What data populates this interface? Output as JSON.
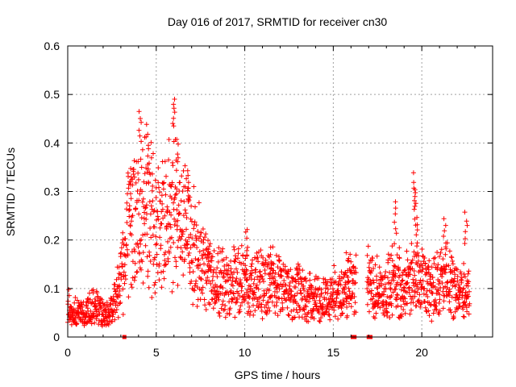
{
  "chart_data": {
    "type": "scatter",
    "title": "Day 016 of 2017, SRMTID for receiver cn30",
    "xlabel": "GPS time / hours",
    "ylabel": "SRMTID / TECUs",
    "xlim": [
      0,
      24
    ],
    "ylim": [
      0,
      0.6
    ],
    "xticks": [
      0,
      5,
      10,
      15,
      20
    ],
    "yticks": [
      0,
      0.1,
      0.2,
      0.3,
      0.4,
      0.5,
      0.6
    ],
    "xtick_labels": [
      "0",
      "5",
      "10",
      "15",
      "20"
    ],
    "ytick_labels": [
      "0",
      "0.1",
      "0.2",
      "0.3",
      "0.4",
      "0.5",
      "0.6"
    ],
    "grid": true,
    "marker": "+",
    "color": "#ff0000",
    "profile": [
      [
        0.0,
        0.05
      ],
      [
        0.5,
        0.045
      ],
      [
        1.0,
        0.045
      ],
      [
        1.5,
        0.055
      ],
      [
        2.0,
        0.045
      ],
      [
        2.5,
        0.05
      ],
      [
        2.8,
        0.08
      ],
      [
        3.1,
        0.13
      ],
      [
        3.4,
        0.2
      ],
      [
        3.7,
        0.21
      ],
      [
        4.0,
        0.22
      ],
      [
        4.3,
        0.23
      ],
      [
        4.7,
        0.22
      ],
      [
        5.0,
        0.2
      ],
      [
        5.5,
        0.22
      ],
      [
        6.0,
        0.23
      ],
      [
        6.5,
        0.2
      ],
      [
        7.0,
        0.18
      ],
      [
        7.5,
        0.14
      ],
      [
        8.0,
        0.11
      ],
      [
        8.5,
        0.1
      ],
      [
        9.0,
        0.095
      ],
      [
        9.5,
        0.1
      ],
      [
        10.0,
        0.1
      ],
      [
        10.5,
        0.09
      ],
      [
        11.0,
        0.1
      ],
      [
        11.5,
        0.1
      ],
      [
        12.0,
        0.09
      ],
      [
        12.5,
        0.075
      ],
      [
        13.0,
        0.08
      ],
      [
        13.5,
        0.075
      ],
      [
        14.0,
        0.07
      ],
      [
        14.5,
        0.07
      ],
      [
        15.0,
        0.075
      ],
      [
        15.5,
        0.085
      ],
      [
        16.0,
        0.1
      ],
      [
        16.3,
        0.1
      ]
    ],
    "profile2": [
      [
        16.9,
        0.1
      ],
      [
        17.5,
        0.09
      ],
      [
        18.0,
        0.085
      ],
      [
        18.5,
        0.11
      ],
      [
        19.0,
        0.09
      ],
      [
        19.5,
        0.1
      ],
      [
        20.0,
        0.11
      ],
      [
        20.5,
        0.09
      ],
      [
        21.0,
        0.11
      ],
      [
        21.5,
        0.1
      ],
      [
        22.0,
        0.09
      ],
      [
        22.5,
        0.08
      ],
      [
        22.7,
        0.08
      ]
    ],
    "spikes": [
      {
        "x": 4.1,
        "y": 0.47
      },
      {
        "x": 4.5,
        "y": 0.44
      },
      {
        "x": 6.0,
        "y": 0.5
      },
      {
        "x": 6.2,
        "y": 0.41
      },
      {
        "x": 3.6,
        "y": 0.35
      },
      {
        "x": 6.8,
        "y": 0.34
      },
      {
        "x": 10.1,
        "y": 0.23
      },
      {
        "x": 18.5,
        "y": 0.28
      },
      {
        "x": 19.6,
        "y": 0.34
      },
      {
        "x": 19.6,
        "y": 0.3
      },
      {
        "x": 19.7,
        "y": 0.25
      },
      {
        "x": 21.3,
        "y": 0.25
      },
      {
        "x": 22.5,
        "y": 0.26
      },
      {
        "x": 8.0,
        "y": 0.2
      },
      {
        "x": 11.5,
        "y": 0.17
      },
      {
        "x": 15.8,
        "y": 0.14
      }
    ],
    "zero_markers": [
      3.2,
      16.1,
      16.2,
      17.0,
      17.1
    ]
  }
}
